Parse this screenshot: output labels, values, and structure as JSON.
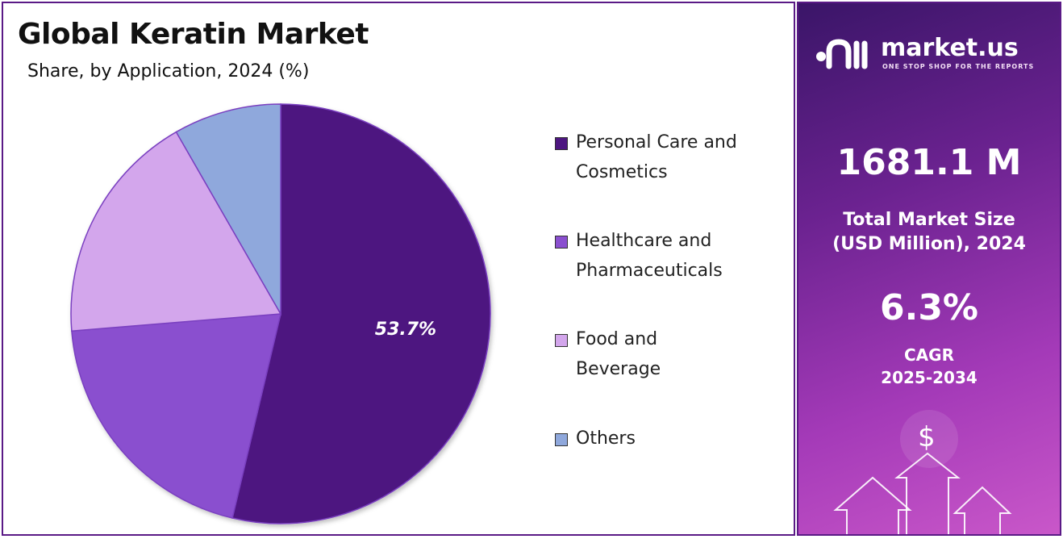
{
  "chart_data": {
    "type": "pie",
    "title": "Global Keratin Market",
    "subtitle": "Share, by Application, 2024 (%)",
    "slices": [
      {
        "label": "Personal Care and Cosmetics",
        "value": 53.7,
        "color": "#4d1680",
        "data_label": "53.7%"
      },
      {
        "label": "Healthcare and Pharmaceuticals",
        "value": 20.0,
        "color": "#8a4fcf"
      },
      {
        "label": "Food and Beverage",
        "value": 18.0,
        "color": "#d3a6ec"
      },
      {
        "label": "Others",
        "value": 8.3,
        "color": "#8fa8dc"
      }
    ],
    "legend_position": "right"
  },
  "legend": {
    "items": [
      {
        "line1": "Personal Care and",
        "line2": "Cosmetics"
      },
      {
        "line1": "Healthcare and",
        "line2": "Pharmaceuticals"
      },
      {
        "line1": "Food and",
        "line2": "Beverage"
      },
      {
        "line1": "Others",
        "line2": ""
      }
    ]
  },
  "sidebar": {
    "brand_name": "market.us",
    "brand_tagline": "ONE STOP SHOP FOR THE REPORTS",
    "market_size_value": "1681.1 M",
    "market_size_label_1": "Total Market Size",
    "market_size_label_2": "(USD Million), 2024",
    "cagr_value": "6.3%",
    "cagr_label_1": "CAGR",
    "cagr_label_2": "2025-2034",
    "dollar_symbol": "$"
  }
}
